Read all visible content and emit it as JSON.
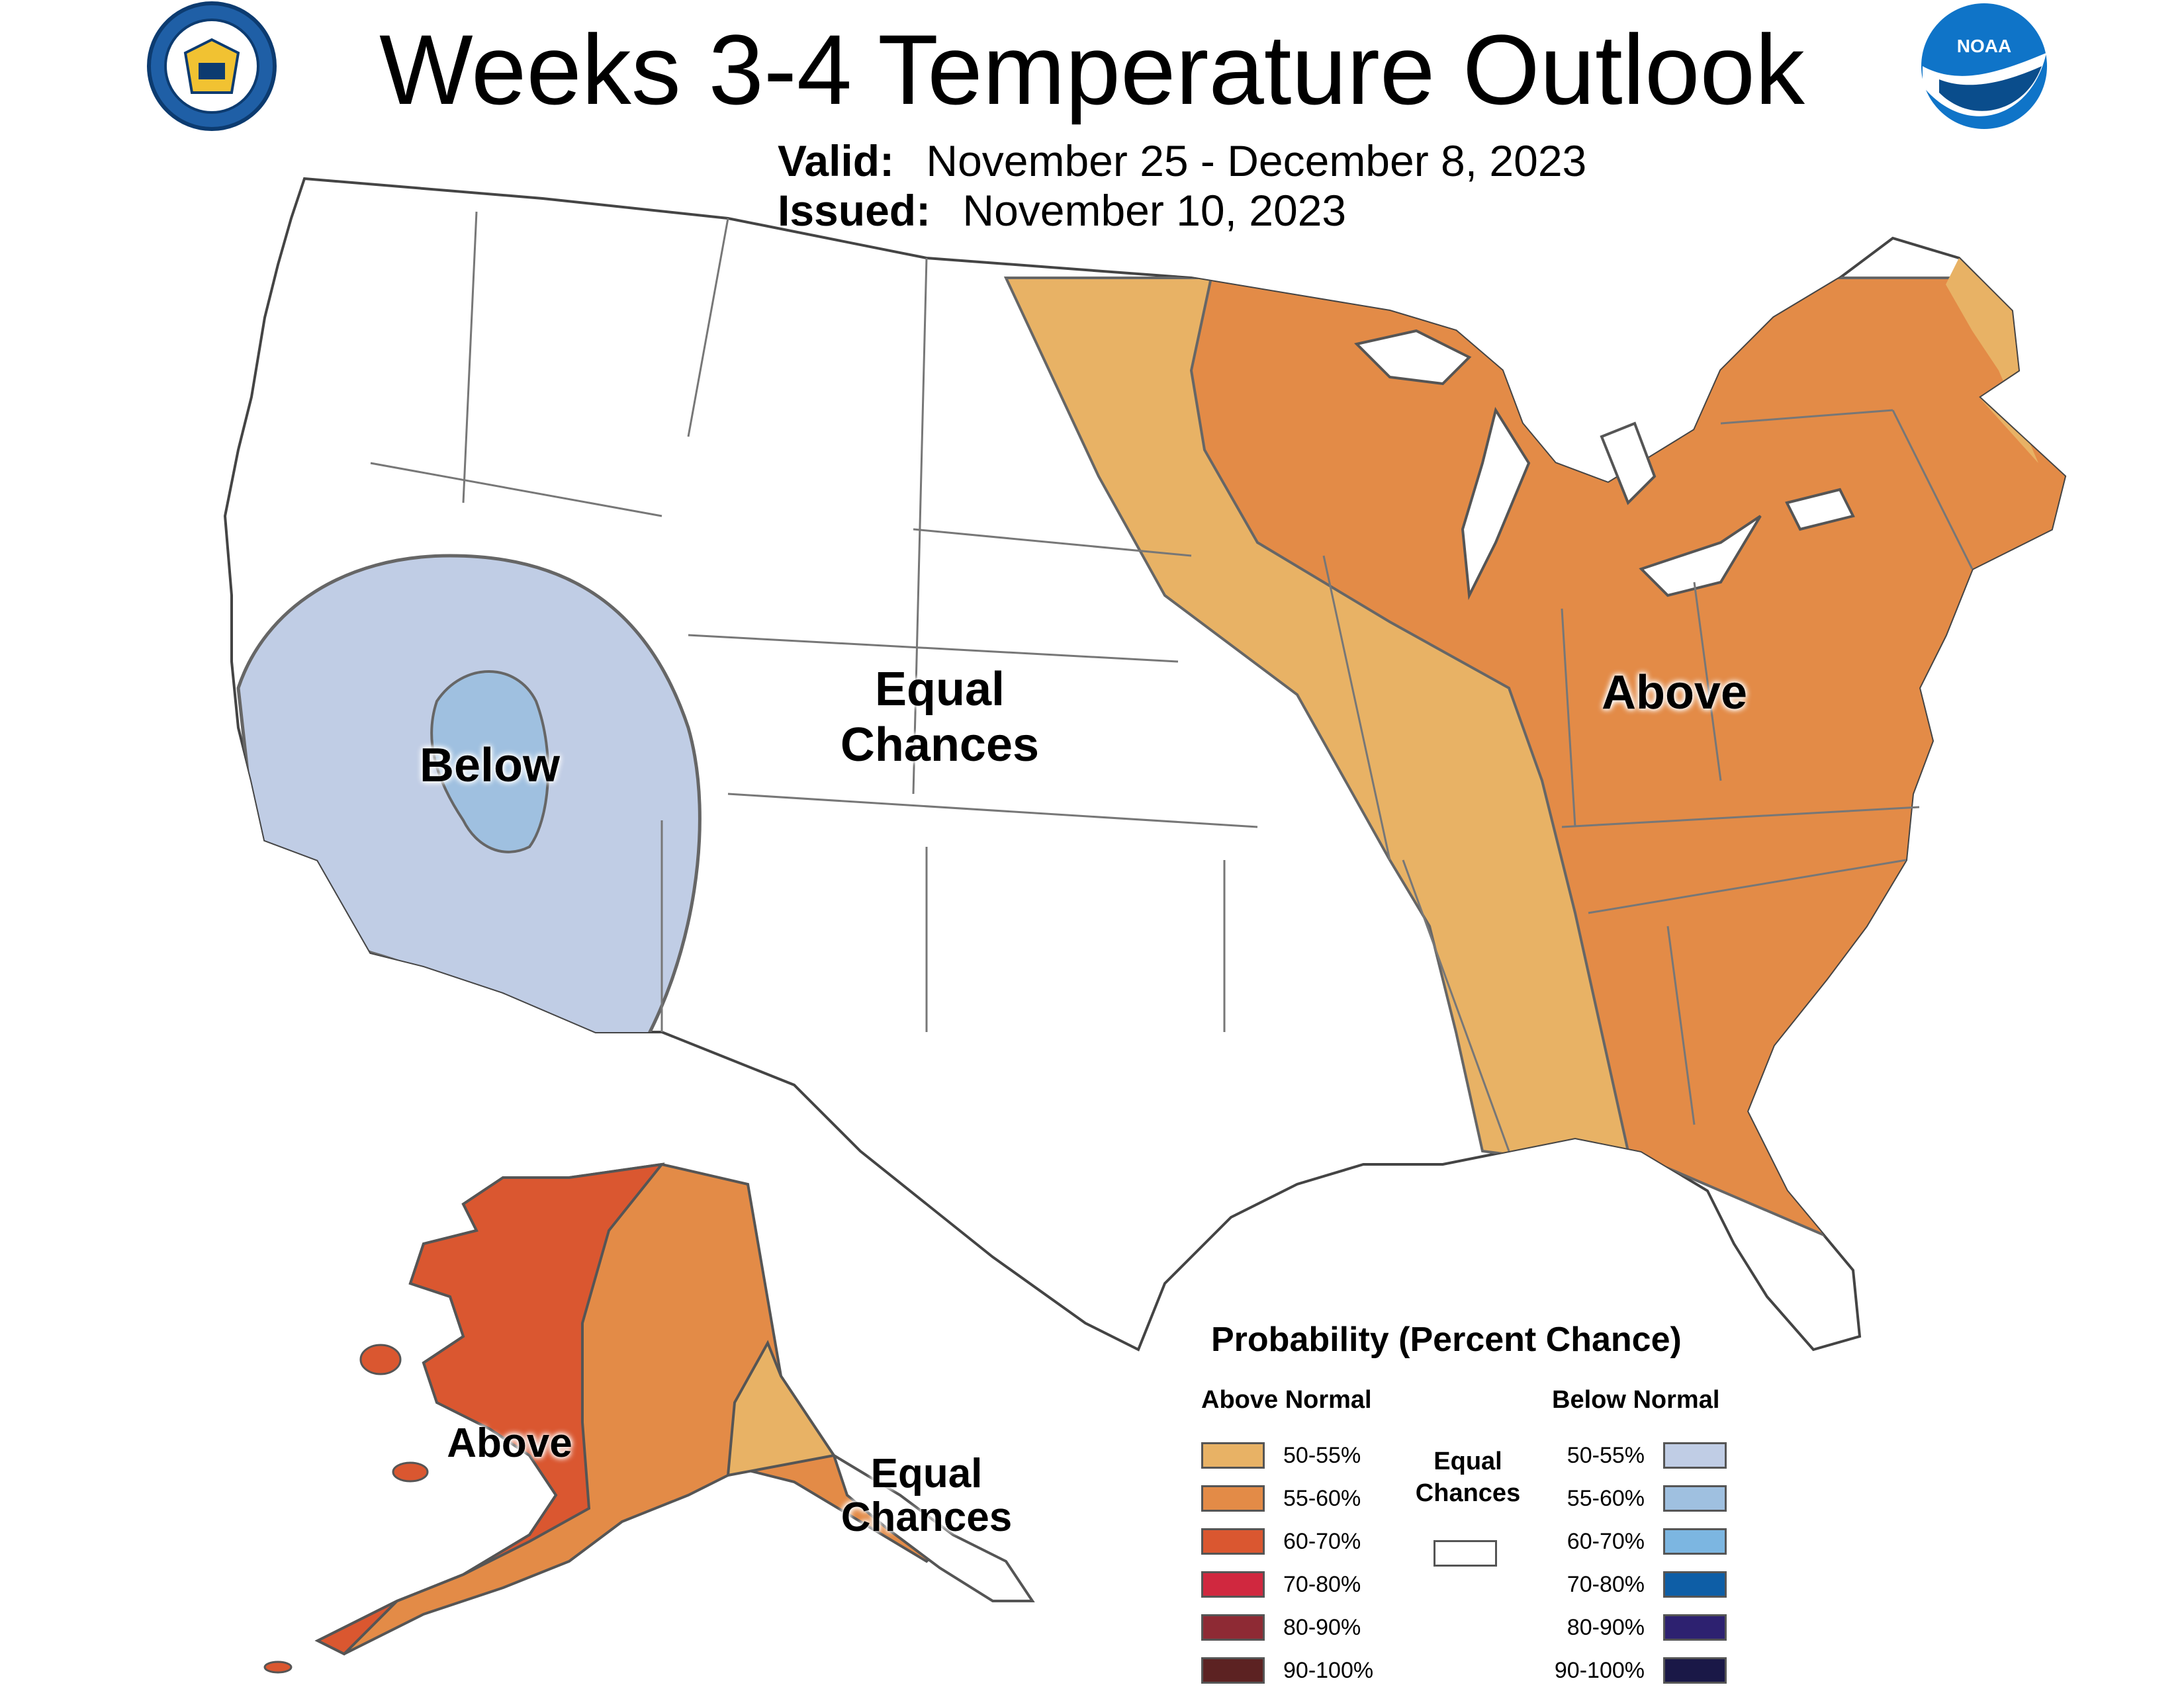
{
  "title": "Weeks 3-4 Temperature Outlook",
  "valid": {
    "label": "Valid:",
    "value": "November 25 - December 8, 2023"
  },
  "issued": {
    "label": "Issued:",
    "value": "November 10, 2023"
  },
  "logos": {
    "left": "department-of-commerce-seal",
    "right": "noaa-logo",
    "noaa_text": "NOAA"
  },
  "regions": {
    "west_below": "Below",
    "central_equal": [
      "Equal",
      "Chances"
    ],
    "east_above": "Above",
    "alaska_above": "Above",
    "alaska_equal": [
      "Equal",
      "Chances"
    ]
  },
  "legend": {
    "title": "Probability (Percent Chance)",
    "above_heading": "Above Normal",
    "below_heading": "Below Normal",
    "equal_label": [
      "Equal",
      "Chances"
    ],
    "above": [
      {
        "label": "50-55%",
        "color": "#e8b265"
      },
      {
        "label": "55-60%",
        "color": "#e38b47"
      },
      {
        "label": "60-70%",
        "color": "#da5730"
      },
      {
        "label": "70-80%",
        "color": "#d0283f"
      },
      {
        "label": "80-90%",
        "color": "#8e2a34"
      },
      {
        "label": "90-100%",
        "color": "#5c2222"
      }
    ],
    "below": [
      {
        "label": "50-55%",
        "color": "#c0cde5"
      },
      {
        "label": "55-60%",
        "color": "#9fc0e0"
      },
      {
        "label": "60-70%",
        "color": "#7cb6e1"
      },
      {
        "label": "70-80%",
        "color": "#0e5ea6"
      },
      {
        "label": "80-90%",
        "color": "#2d2170"
      },
      {
        "label": "90-100%",
        "color": "#1a1847"
      }
    ]
  }
}
